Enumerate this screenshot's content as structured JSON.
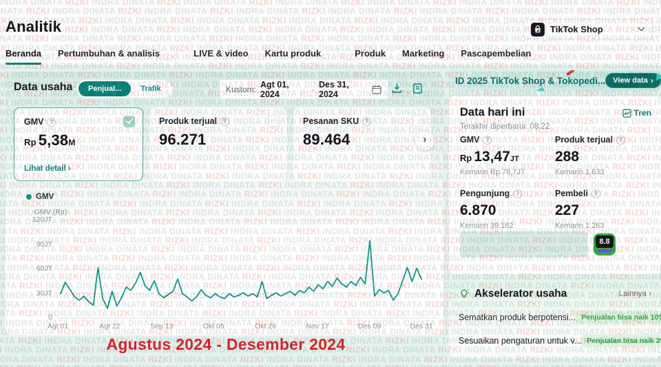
{
  "watermark": {
    "name1": "INDRA DINATA",
    "name2": "RIZKI"
  },
  "header": {
    "title": "Analitik",
    "shop_selector": {
      "label": "TikTok Shop"
    }
  },
  "tabs": [
    {
      "label": "Beranda",
      "active": true
    },
    {
      "label": "Pertumbuhan & analisis"
    },
    {
      "label": "LIVE & video"
    },
    {
      "label": "Kartu produk"
    },
    {
      "label": "Produk"
    },
    {
      "label": "Marketing"
    },
    {
      "label": "Pascapembelian"
    }
  ],
  "data_usaha": {
    "title": "Data usaha",
    "toggle": {
      "active": "Penjual...",
      "inactive": "Trafik"
    },
    "date_range": {
      "prefix": "Kustom:",
      "start": "Agt 01, 2024",
      "separator": "-",
      "end": "Des 31, 2024"
    },
    "cards": [
      {
        "label": "GMV",
        "currency": "Rp",
        "value": "5,38",
        "suffix": "M",
        "link": "Lihat detail",
        "selected": true,
        "checked": true
      },
      {
        "label": "Produk terjual",
        "value": "96.271",
        "checked": false
      },
      {
        "label": "Pesanan SKU",
        "value": "89.464",
        "checked": false
      }
    ]
  },
  "chart_data": {
    "type": "line",
    "title": "",
    "y_axis_title": "GMV (Rp)",
    "legend": [
      "GMV"
    ],
    "ylim": [
      0,
      120
    ],
    "y_unit": "JT",
    "y_ticks": [
      "120JT",
      "90JT",
      "60JT",
      "30JT",
      "0"
    ],
    "x_tick_labels": [
      "Agt 01",
      "Agt 22",
      "Sep 13",
      "Okt 05",
      "Okt 26",
      "Nov 17",
      "Des 09",
      "Des 31"
    ],
    "x_range": [
      "Agt 01, 2024",
      "Des 31, 2024"
    ],
    "grid": true,
    "series": [
      {
        "name": "GMV",
        "color": "#14968a",
        "unit": "JT Rp",
        "values": [
          30,
          44,
          35,
          26,
          22,
          27,
          20,
          16,
          62,
          24,
          12,
          33,
          15,
          25,
          38,
          34,
          43,
          56,
          40,
          34,
          46,
          30,
          25,
          29,
          33,
          48,
          30,
          26,
          21,
          26,
          35,
          28,
          25,
          30,
          26,
          24,
          30,
          26,
          28,
          31,
          27,
          30,
          26,
          45,
          24,
          28,
          31,
          27,
          30,
          33,
          28,
          34,
          31,
          38,
          33,
          41,
          36,
          45,
          39,
          49,
          42,
          38,
          45,
          40,
          50,
          42,
          95,
          27,
          35,
          31,
          34,
          22,
          30,
          46,
          62,
          45,
          61,
          48
        ]
      }
    ]
  },
  "annotation": "Agustus 2024 - Desember 2024",
  "right_panel": {
    "banner": {
      "title": "ID 2025 TikTok Shop & Tokopedi...",
      "button": "View data"
    },
    "today": {
      "title": "Data hari ini",
      "updated": "Terakhir diperbarui: 08:22",
      "tren_label": "Tren",
      "metrics": [
        {
          "label": "GMV",
          "currency": "Rp",
          "value": "13,47",
          "suffix": "JT",
          "sub": "Kemarin Rp 78,7JT"
        },
        {
          "label": "Produk terjual",
          "value": "288",
          "sub": "Kemarin 1.633"
        },
        {
          "label": "Pengunjung",
          "value": "6.870",
          "sub": "Kemarin 39.182"
        },
        {
          "label": "Pembeli",
          "value": "227",
          "sub": "Kemarin 1.263"
        }
      ],
      "badge_label": "8.8"
    },
    "accelerator": {
      "title": "Akselerator usaha",
      "more": "Lainnya",
      "items": [
        {
          "text": "Sematkan produk berpotensi...",
          "badge": "Penjualan bisa naik 10%"
        },
        {
          "text": "Sesuaikan pengaturan untuk v...",
          "badge": "Penjualan bisa naik 3%"
        }
      ]
    }
  },
  "colors": {
    "accent_teal": "#0e857b",
    "dark_teal_button": "#0c7169",
    "banner_text": "#0a6f67",
    "chart_line": "#14968a",
    "annotation_red": "#d7252c",
    "badge_green_bg": "#def2e0",
    "badge_green_text": "#2f9e44",
    "watermark_gray": "#cfd2d4",
    "watermark_pink": "#f0b4b1"
  }
}
